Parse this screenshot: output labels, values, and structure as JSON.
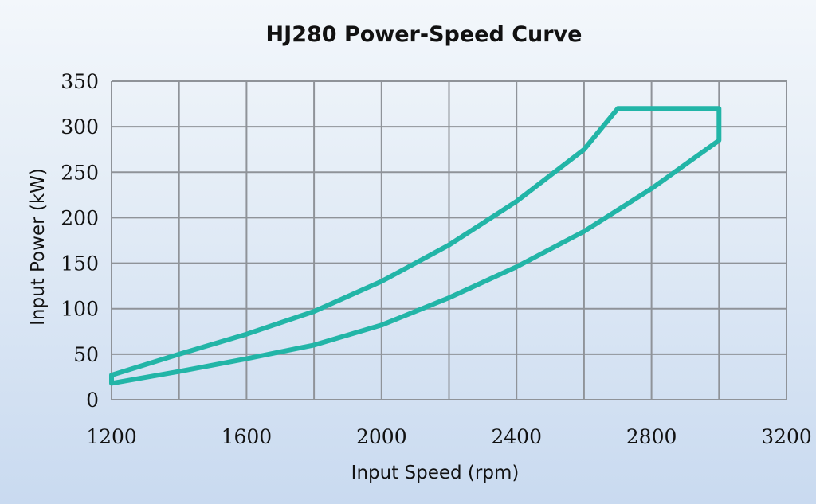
{
  "chart_data": {
    "type": "line",
    "title": "HJ280 Power-Speed Curve",
    "xlabel": "Input Speed (rpm)",
    "ylabel": "Input Power (kW)",
    "xlim": [
      1200,
      3200
    ],
    "ylim": [
      0,
      350
    ],
    "x_ticks": [
      1200,
      1600,
      2000,
      2400,
      2800,
      3200
    ],
    "y_ticks": [
      0,
      50,
      100,
      150,
      200,
      250,
      300,
      350
    ],
    "x_tick_labels": [
      "1200",
      "1600",
      "2000",
      "2400",
      "2800",
      "3200"
    ],
    "y_tick_labels": [
      "0",
      "50",
      "100",
      "150",
      "200",
      "250",
      "300",
      "350"
    ],
    "grid": true,
    "x_grid_step": 200,
    "y_grid_step": 50,
    "color": "#22b5a7",
    "series": [
      {
        "values": [
          [
            1200,
            27
          ],
          [
            1400,
            50
          ],
          [
            1600,
            72
          ],
          [
            1800,
            97
          ],
          [
            2000,
            130
          ],
          [
            2200,
            170
          ],
          [
            2400,
            218
          ],
          [
            2600,
            275
          ],
          [
            2700,
            320
          ],
          [
            3000,
            320
          ],
          [
            3000,
            285
          ],
          [
            2800,
            232
          ],
          [
            2600,
            185
          ],
          [
            2400,
            146
          ],
          [
            2200,
            112
          ],
          [
            2000,
            82
          ],
          [
            1800,
            60
          ],
          [
            1600,
            45
          ],
          [
            1400,
            31
          ],
          [
            1200,
            18
          ]
        ]
      }
    ]
  }
}
